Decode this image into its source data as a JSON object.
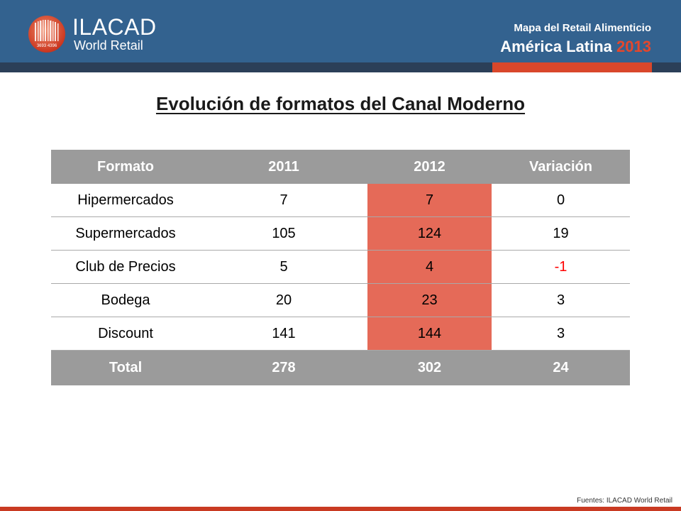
{
  "header": {
    "logo_name": "ILACAD",
    "logo_sub": "World Retail",
    "title": "Mapa del Retail Alimenticio",
    "subtitle_region": "América Latina",
    "subtitle_year": "2013"
  },
  "page": {
    "title": "Evolución de formatos del Canal Moderno"
  },
  "table": {
    "columns": [
      "Formato",
      "2011",
      "2012",
      "Variación"
    ],
    "rows": [
      {
        "formato": "Hipermercados",
        "y2011": "7",
        "y2012": "7",
        "variacion": "0"
      },
      {
        "formato": "Supermercados",
        "y2011": "105",
        "y2012": "124",
        "variacion": "19"
      },
      {
        "formato": "Club de Precios",
        "y2011": "5",
        "y2012": "4",
        "variacion": "-1"
      },
      {
        "formato": "Bodega",
        "y2011": "20",
        "y2012": "23",
        "variacion": "3"
      },
      {
        "formato": "Discount",
        "y2011": "141",
        "y2012": "144",
        "variacion": "3"
      }
    ],
    "total": {
      "formato": "Total",
      "y2011": "278",
      "y2012": "302",
      "variacion": "24"
    }
  },
  "footer": {
    "source": "Fuentes: ILACAD World Retail"
  },
  "colors": {
    "header_blue": "#33628f",
    "accent_red": "#d9472b",
    "highlight_2012": "#e56a58",
    "header_gray": "#9b9b9b",
    "negative": "#ff0000"
  }
}
